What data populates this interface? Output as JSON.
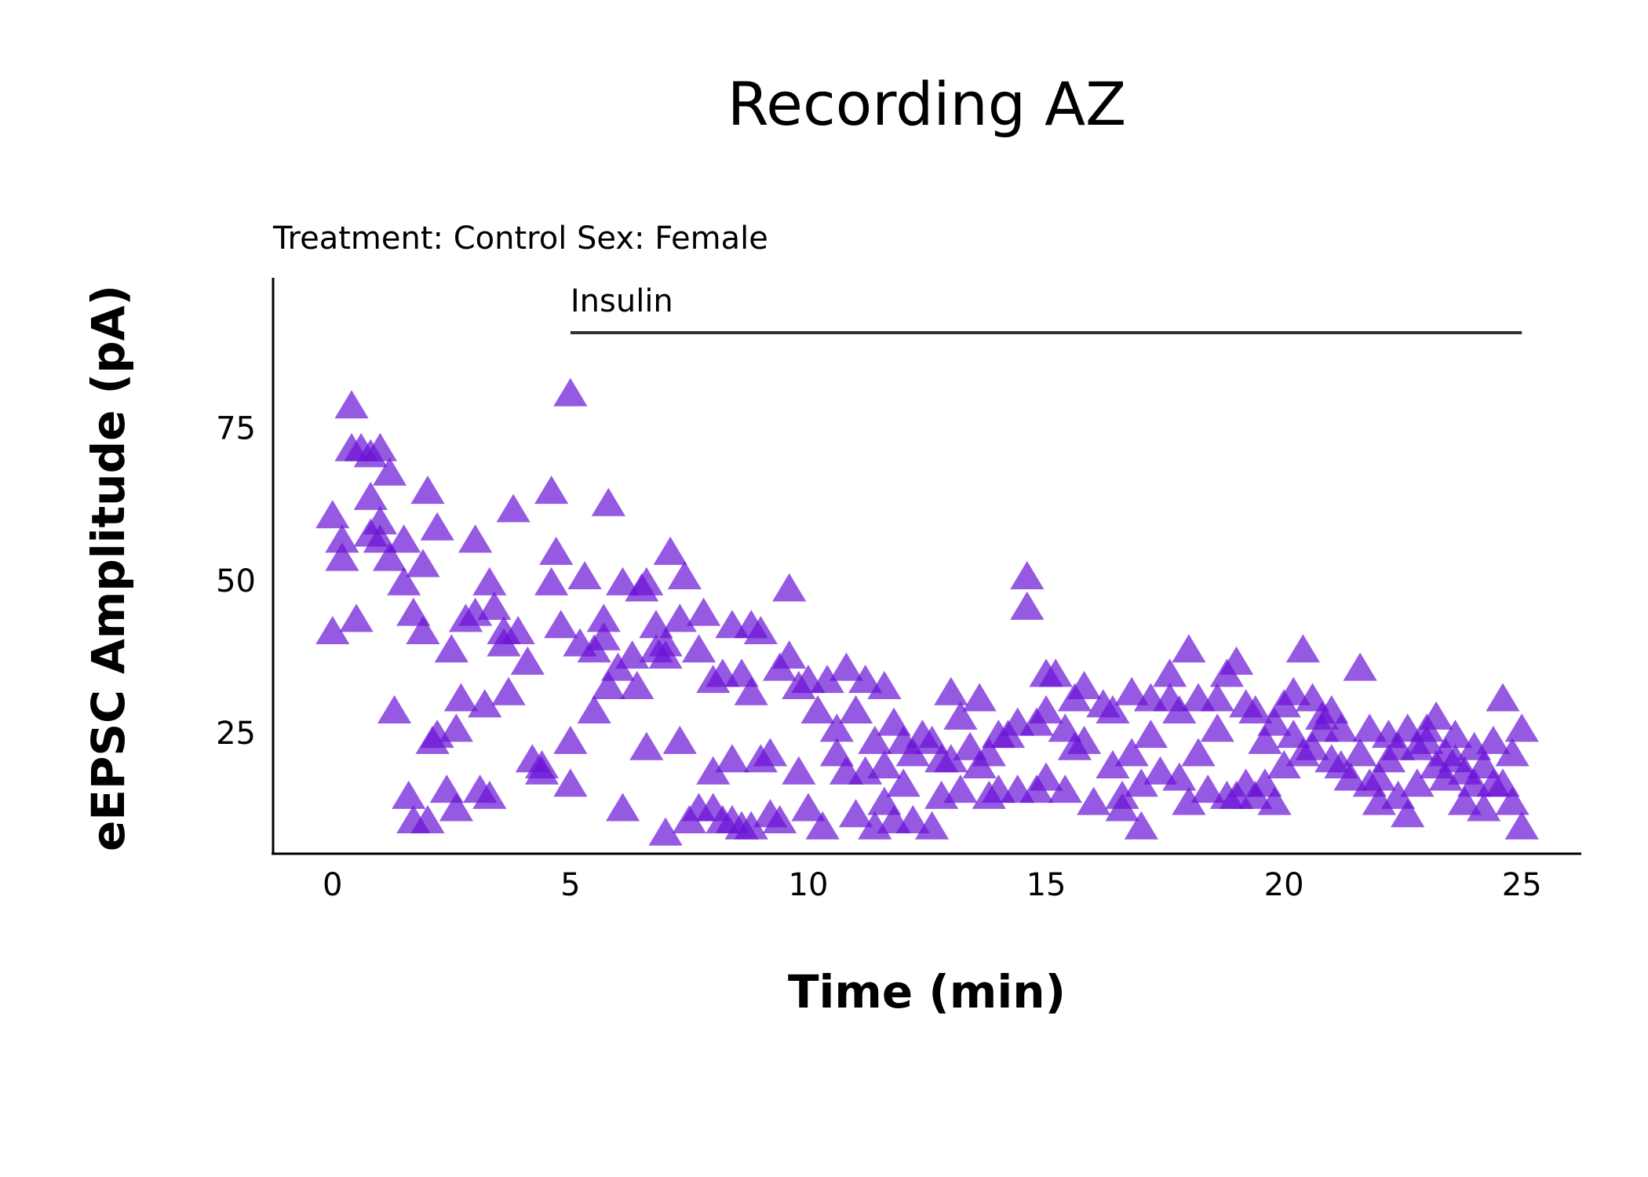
{
  "chart_data": {
    "type": "scatter",
    "title": "Recording AZ",
    "subtitle": "Treatment: Control  Sex: Female",
    "x_label": "Time (min)",
    "y_label": "eEPSC Amplitude (pA)",
    "xlim": [
      -1.25,
      26.25
    ],
    "ylim": [
      5.6,
      100
    ],
    "xticks": [
      0,
      5,
      10,
      15,
      20,
      25
    ],
    "yticks": [
      25,
      50,
      75
    ],
    "marker": "triangle",
    "color": "#6a12d6",
    "grid": false,
    "annotations": [
      {
        "text": "Insulin",
        "x_start": 5,
        "x_end": 25,
        "y": 91
      }
    ],
    "x": [
      0,
      0,
      0.2,
      0.2,
      0.4,
      0.4,
      0.5,
      0.6,
      0.8,
      0.8,
      0.8,
      1.0,
      1.0,
      1.0,
      1.2,
      1.2,
      1.3,
      1.5,
      1.5,
      1.6,
      1.7,
      1.7,
      1.9,
      1.9,
      2.0,
      2.0,
      2.1,
      2.2,
      2.2,
      2.4,
      2.5,
      2.6,
      2.6,
      2.7,
      2.8,
      3.0,
      3.0,
      3.1,
      3.2,
      3.3,
      3.3,
      3.4,
      3.6,
      3.6,
      3.7,
      3.8,
      3.9,
      4.1,
      4.2,
      4.4,
      4.4,
      4.6,
      4.6,
      4.7,
      4.8,
      5.0,
      5.0,
      5.0,
      5.2,
      5.3,
      5.5,
      5.5,
      5.7,
      5.7,
      5.8,
      5.8,
      6.0,
      6.1,
      6.1,
      6.3,
      6.4,
      6.5,
      6.6,
      6.6,
      6.8,
      6.8,
      7.0,
      7.0,
      7.0,
      7.1,
      7.3,
      7.3,
      7.4,
      7.5,
      7.7,
      7.7,
      7.8,
      8.0,
      8.0,
      8.0,
      8.2,
      8.2,
      8.4,
      8.4,
      8.4,
      8.6,
      8.6,
      8.8,
      8.8,
      8.8,
      9.0,
      9.0,
      9.2,
      9.2,
      9.4,
      9.4,
      9.6,
      9.6,
      9.8,
      9.8,
      10.0,
      10.0,
      10.2,
      10.3,
      10.4,
      10.6,
      10.6,
      10.8,
      10.8,
      11.0,
      11.0,
      11.2,
      11.2,
      11.4,
      11.4,
      11.6,
      11.6,
      11.6,
      11.8,
      11.8,
      12.0,
      12.0,
      12.2,
      12.2,
      12.4,
      12.6,
      12.6,
      12.8,
      12.8,
      13.0,
      13.0,
      13.2,
      13.2,
      13.4,
      13.6,
      13.6,
      13.8,
      13.8,
      14.0,
      14.0,
      14.2,
      14.4,
      14.4,
      14.6,
      14.6,
      14.8,
      14.8,
      15.0,
      15.0,
      15.0,
      15.2,
      15.4,
      15.4,
      15.6,
      15.6,
      15.8,
      15.8,
      16.0,
      16.2,
      16.4,
      16.4,
      16.6,
      16.6,
      16.8,
      16.8,
      17.0,
      17.0,
      17.2,
      17.2,
      17.4,
      17.6,
      17.6,
      17.8,
      17.8,
      18.0,
      18.0,
      18.2,
      18.2,
      18.4,
      18.6,
      18.6,
      18.8,
      18.8,
      19.0,
      19.0,
      19.2,
      19.2,
      19.4,
      19.4,
      19.6,
      19.6,
      19.8,
      19.8,
      20.0,
      20.0,
      20.2,
      20.2,
      20.4,
      20.4,
      20.6,
      20.6,
      20.8,
      20.8,
      21.0,
      21.0,
      21.2,
      21.2,
      21.4,
      21.6,
      21.6,
      21.8,
      21.8,
      22.0,
      22.0,
      22.2,
      22.2,
      22.4,
      22.4,
      22.6,
      22.6,
      22.8,
      22.8,
      23.0,
      23.0,
      23.2,
      23.2,
      23.4,
      23.4,
      23.6,
      23.6,
      23.8,
      23.8,
      24.0,
      24.0,
      24.2,
      24.2,
      24.4,
      24.4,
      24.6,
      24.6,
      24.8,
      24.8,
      25.0,
      25.0
    ],
    "values": [
      61,
      42,
      57,
      54,
      72,
      79,
      44,
      72,
      71,
      64,
      58,
      72,
      60,
      57,
      54,
      68,
      29,
      57,
      50,
      15,
      45,
      11,
      42,
      53,
      65,
      11,
      24,
      59,
      25,
      16,
      39,
      13,
      26,
      31,
      44,
      45,
      57,
      16,
      30,
      50,
      15,
      46,
      40,
      42,
      32,
      62,
      42,
      37,
      21,
      20,
      19,
      50,
      65,
      55,
      43,
      81,
      17,
      24,
      40,
      51,
      39,
      29,
      41,
      44,
      33,
      63,
      36,
      50,
      13,
      38,
      33,
      49,
      50,
      23,
      39,
      43,
      40,
      38,
      9,
      55,
      44,
      24,
      51,
      11,
      39,
      13,
      45,
      34,
      13,
      19,
      35,
      11,
      43,
      11,
      21,
      35,
      10,
      43,
      32,
      10,
      42,
      21,
      12,
      22,
      36,
      11,
      49,
      38,
      33,
      19,
      34,
      13,
      29,
      10,
      34,
      26,
      22,
      36,
      19,
      29,
      12,
      34,
      19,
      24,
      10,
      33,
      14,
      20,
      27,
      11,
      17,
      24,
      11,
      22,
      25,
      10,
      24,
      21,
      15,
      32,
      21,
      16,
      28,
      23,
      31,
      20,
      22,
      15,
      25,
      16,
      25,
      27,
      16,
      51,
      46,
      16,
      27,
      35,
      18,
      29,
      35,
      26,
      16,
      23,
      31,
      24,
      33,
      14,
      30,
      20,
      29,
      15,
      13,
      32,
      22,
      17,
      10,
      25,
      31,
      19,
      31,
      35,
      29,
      18,
      39,
      14,
      31,
      22,
      16,
      26,
      31,
      15,
      35,
      37,
      15,
      30,
      17,
      29,
      15,
      17,
      24,
      27,
      14,
      30,
      20,
      32,
      25,
      39,
      22,
      31,
      23,
      26,
      28,
      21,
      29,
      20,
      26,
      18,
      36,
      22,
      17,
      26,
      14,
      18,
      25,
      21,
      15,
      23,
      12,
      26,
      17,
      23,
      24,
      26,
      28,
      20,
      22,
      18,
      21,
      25,
      14,
      19,
      23,
      17,
      20,
      13,
      17,
      24,
      31,
      17,
      14,
      22,
      10,
      26
    ]
  }
}
